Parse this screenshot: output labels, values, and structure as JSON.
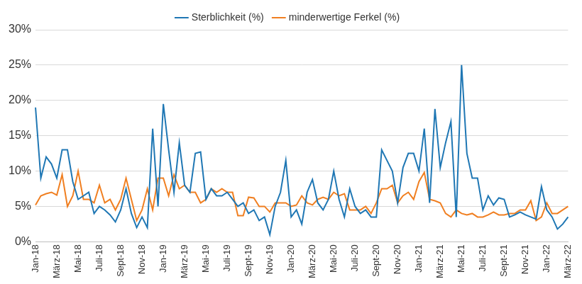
{
  "chart_data": {
    "type": "line",
    "categories": [
      "Jan-18",
      null,
      null,
      null,
      "März-18",
      null,
      null,
      null,
      "Mai-18",
      null,
      null,
      null,
      "Juli-18",
      null,
      null,
      null,
      "Sept-18",
      null,
      null,
      null,
      "Nov-18",
      null,
      null,
      null,
      "Jan-19",
      null,
      null,
      null,
      "März-19",
      null,
      null,
      null,
      "Mai-19",
      null,
      null,
      null,
      "Juli-19",
      null,
      null,
      null,
      "Sept-19",
      null,
      null,
      null,
      "Nov-19",
      null,
      null,
      null,
      "Jan-20",
      null,
      null,
      null,
      "März-20",
      null,
      null,
      null,
      "Mai-20",
      null,
      null,
      null,
      "Juli-20",
      null,
      null,
      null,
      "Sept-20",
      null,
      null,
      null,
      "Nov-20",
      null,
      null,
      null,
      "Jan-21",
      null,
      null,
      null,
      "März-21",
      null,
      null,
      null,
      "Mai-21",
      null,
      null,
      null,
      "Juli-21",
      null,
      null,
      null,
      "Sept-21",
      null,
      null,
      null,
      "Nov-21",
      null,
      null,
      null,
      "Jan-22",
      null,
      null,
      null,
      "März-22"
    ],
    "series": [
      {
        "name": "Sterblichkeit (%)",
        "color": "#1f77b4",
        "values": [
          19,
          9,
          12,
          11,
          9,
          13,
          13,
          8.5,
          6,
          6.5,
          7,
          4,
          5,
          4.5,
          3.8,
          2.8,
          4.5,
          7.5,
          4,
          2,
          3.5,
          2,
          16,
          5,
          19.5,
          13,
          7,
          14,
          8,
          7,
          12.5,
          12.7,
          6,
          7.5,
          6.5,
          6.5,
          7,
          6,
          5,
          5.5,
          4,
          4.5,
          3,
          3.5,
          1,
          5,
          7,
          11.5,
          3.5,
          4.5,
          2.5,
          7,
          8.8,
          5.5,
          4.5,
          6,
          10,
          6,
          3.5,
          7.5,
          5,
          4,
          4.5,
          3.5,
          3.5,
          13,
          11.5,
          10,
          5.5,
          10.5,
          12.5,
          12.5,
          10,
          16,
          5.5,
          18.8,
          10.5,
          14,
          17,
          3.5,
          25,
          12.5,
          9,
          9,
          4.5,
          6.5,
          5.2,
          6.2,
          6,
          3.5,
          3.8,
          4.2,
          3.8,
          3.5,
          3.2,
          7.8,
          4.5,
          3.5,
          1.8,
          2.5,
          3.5
        ]
      },
      {
        "name": "minderwertige Ferkel (%)",
        "color": "#f07f21",
        "values": [
          5.2,
          6.5,
          6.8,
          7,
          6.6,
          9.5,
          5,
          6.5,
          10,
          6,
          6,
          5.5,
          8,
          5.5,
          6,
          4.5,
          6,
          9,
          6,
          3,
          4.5,
          7.5,
          4.5,
          9,
          9,
          6.5,
          9.5,
          7.5,
          8,
          7,
          7,
          5.5,
          6,
          7.5,
          7,
          7.5,
          7,
          7,
          3.7,
          3.7,
          6.3,
          6.2,
          5,
          5,
          4.2,
          5.5,
          5.5,
          5.5,
          5,
          5.2,
          6.5,
          5.5,
          5.2,
          6,
          6.3,
          6,
          7,
          6.5,
          6.8,
          4.5,
          4.5,
          4.5,
          5,
          4,
          5.5,
          7.5,
          7.5,
          8,
          5.5,
          6.5,
          7,
          6,
          8.5,
          9.8,
          6,
          5.8,
          5.5,
          4,
          3.5,
          4.5,
          4,
          3.8,
          4,
          3.5,
          3.5,
          3.8,
          4.2,
          3.8,
          3.8,
          4,
          4,
          4.5,
          4.5,
          5.8,
          3,
          3.5,
          5.5,
          4,
          4,
          4.5,
          5
        ]
      }
    ],
    "ylim": [
      0,
      30
    ],
    "yticks": [
      {
        "value": 0,
        "label": "0%"
      },
      {
        "value": 5,
        "label": "5%"
      },
      {
        "value": 10,
        "label": "10%"
      },
      {
        "value": 15,
        "label": "15%"
      },
      {
        "value": 20,
        "label": "20%"
      },
      {
        "value": 25,
        "label": "25%"
      },
      {
        "value": 30,
        "label": "30%"
      }
    ],
    "grid": true,
    "legend": "top"
  }
}
